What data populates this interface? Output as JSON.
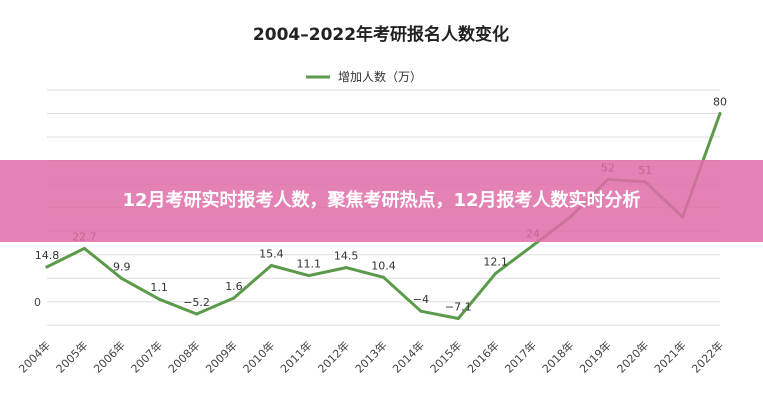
{
  "chart_data": {
    "type": "line",
    "title": "2004–2022年考研报名人数变化",
    "categories": [
      "2004年",
      "2005年",
      "2006年",
      "2007年",
      "2008年",
      "2009年",
      "2010年",
      "2011年",
      "2012年",
      "2013年",
      "2014年",
      "2015年",
      "2016年",
      "2017年",
      "2018年",
      "2019年",
      "2020年",
      "2021年",
      "2022年"
    ],
    "series": [
      {
        "name": "增加人数（万）",
        "values": [
          14.8,
          22.7,
          9.9,
          1.1,
          -5.2,
          1.6,
          15.4,
          11.1,
          14.5,
          10.4,
          -4,
          -7.1,
          12.1,
          24,
          36,
          52,
          51,
          36,
          80
        ],
        "labels": [
          "14.8",
          "22.7",
          "9.9",
          "1.1",
          "−5.2",
          "1.6",
          "15.4",
          "11.1",
          "14.5",
          "10.4",
          "−4",
          "−7.1",
          "12.1",
          "24",
          "",
          "52",
          "51",
          "",
          "80"
        ]
      }
    ],
    "y_tick_labels": [
      {
        "value": 0,
        "label": "0"
      }
    ],
    "ylim": [
      -12,
      90
    ],
    "grid": true,
    "legend_position": "top-center",
    "colors": {
      "line": "#5b9a4a",
      "grid": "#dddddd"
    }
  },
  "banner": {
    "text": "12月考研实时报考人数，聚焦考研热点，12月报考人数实时分析"
  }
}
